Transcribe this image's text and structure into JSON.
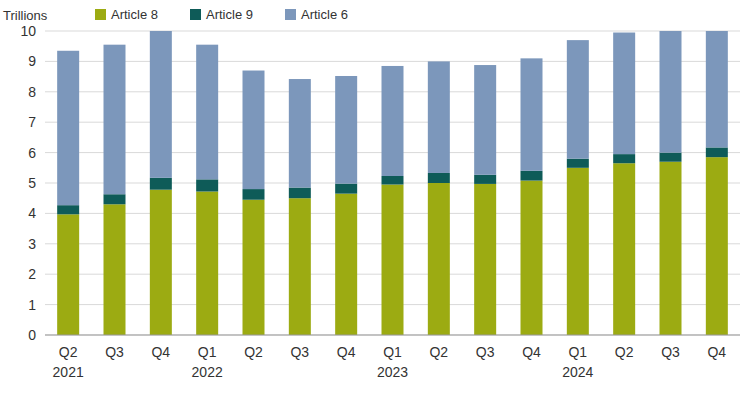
{
  "chart_data": {
    "type": "bar",
    "stacked": true,
    "grid": true,
    "legend": "top",
    "y_label": "Trillions",
    "categories": [
      "Q2 2021",
      "Q3",
      "Q4",
      "Q1 2022",
      "Q2",
      "Q3",
      "Q4",
      "Q1 2023",
      "Q2",
      "Q3",
      "Q4",
      "Q1 2024",
      "Q2",
      "Q3",
      "Q4"
    ],
    "series": [
      {
        "name": "Article 8",
        "color": "#9cab12",
        "values": [
          3.97,
          4.3,
          4.78,
          4.72,
          4.45,
          4.5,
          4.65,
          4.95,
          5.0,
          4.97,
          5.08,
          5.5,
          5.65,
          5.7,
          5.85
        ]
      },
      {
        "name": "Article 9",
        "color": "#0e5b58",
        "values": [
          0.3,
          0.33,
          0.39,
          0.4,
          0.35,
          0.35,
          0.33,
          0.28,
          0.33,
          0.3,
          0.32,
          0.3,
          0.3,
          0.3,
          0.32
        ]
      },
      {
        "name": "Article 6",
        "color": "#7c97bb",
        "values": [
          5.08,
          4.92,
          4.83,
          4.43,
          3.9,
          3.57,
          3.54,
          3.62,
          3.67,
          3.61,
          3.7,
          3.9,
          4.0,
          4.0,
          3.83
        ]
      }
    ],
    "ylim": [
      0,
      10
    ],
    "yticks": [
      0,
      1,
      2,
      3,
      4,
      5,
      6,
      7,
      8,
      9,
      10
    ]
  }
}
